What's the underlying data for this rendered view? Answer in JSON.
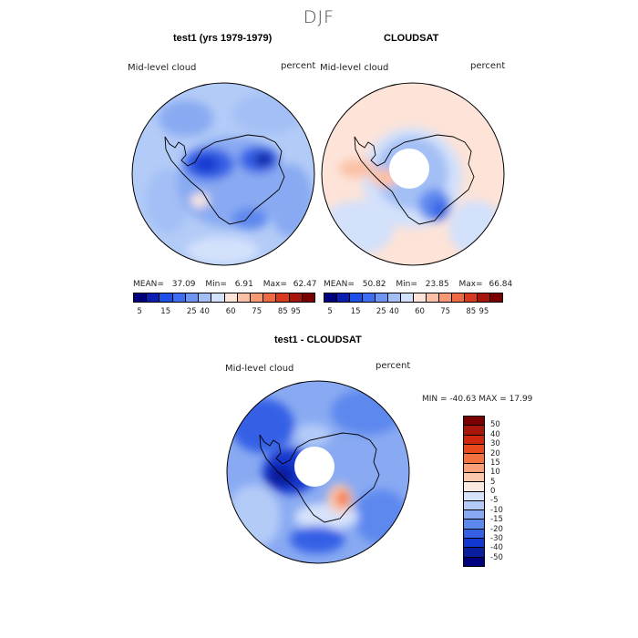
{
  "page": {
    "season": "DJF"
  },
  "colors": {
    "abs_scale": [
      "#00007f",
      "#0a1fb0",
      "#1e4fe6",
      "#3d6ef2",
      "#6f95f2",
      "#a3bff5",
      "#d3e1fb",
      "#fde3d8",
      "#fbc1a6",
      "#f79a74",
      "#ee6a44",
      "#d83a1f",
      "#a8150b",
      "#7a0000"
    ],
    "diff_scale": [
      "#7a0000",
      "#a8150b",
      "#d0280f",
      "#e84a1c",
      "#f4723f",
      "#f9a07a",
      "#fbc7ad",
      "#fbe8de",
      "#d6e3fb",
      "#b3cbf7",
      "#89aaf2",
      "#5d88ee",
      "#3560e6",
      "#1238cf",
      "#0a1d9e",
      "#00007f"
    ],
    "coast": "#000000",
    "disk_border": "#000000"
  },
  "panels": {
    "test1": {
      "title": "test1 (yrs 1979-1979)",
      "variable": "Mid-level cloud",
      "units": "percent",
      "mean_label": "MEAN=",
      "mean": "37.09",
      "min_label": "Min=",
      "min": "6.91",
      "max_label": "Max=",
      "max": "62.47"
    },
    "cloudsat": {
      "title": "CLOUDSAT",
      "variable": "Mid-level cloud",
      "units": "percent",
      "mean_label": "MEAN=",
      "mean": "50.82",
      "min_label": "Min=",
      "min": "23.85",
      "max_label": "Max=",
      "max": "66.84"
    },
    "diff": {
      "title": "test1 - CLOUDSAT",
      "variable": "Mid-level cloud",
      "units": "percent",
      "minmax": "MIN = -40.63 MAX =  17.99"
    }
  },
  "abs_ticks": [
    "5",
    "15",
    "25",
    "40",
    "60",
    "75",
    "85",
    "95"
  ],
  "diff_ticks": [
    "50",
    "40",
    "30",
    "20",
    "15",
    "10",
    "5",
    "0",
    "-5",
    "-10",
    "-15",
    "-20",
    "-30",
    "-40",
    "-50"
  ]
}
